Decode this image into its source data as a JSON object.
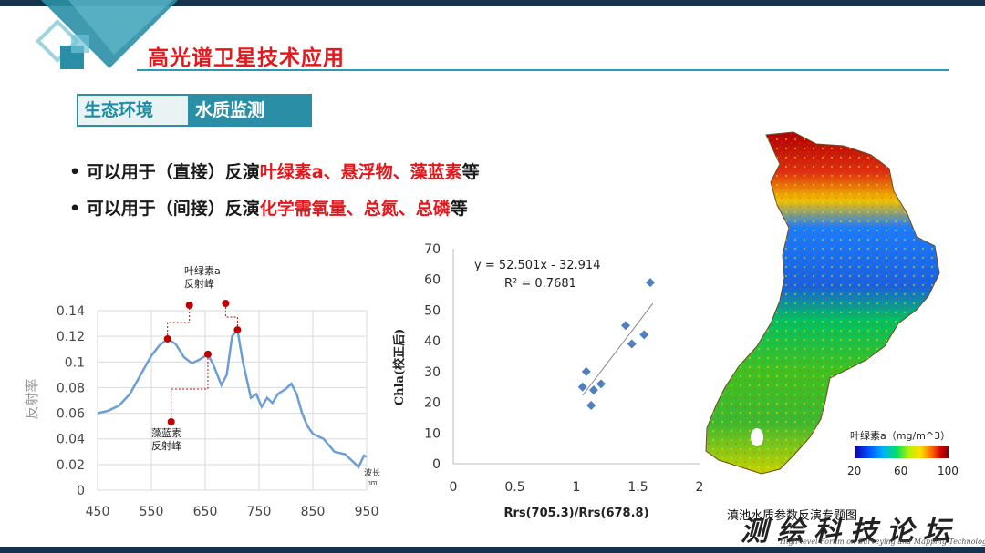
{
  "slide": {
    "title": "高光谱卫星技术应用",
    "tabs": [
      {
        "label": "生态环境"
      },
      {
        "label": "水质监测"
      }
    ],
    "bullets": [
      {
        "prefix": "• 可以用于（直接）反演",
        "highlight": "叶绿素a、悬浮物、藻蓝素",
        "suffix": "等"
      },
      {
        "prefix": "• 可以用于（间接）反演",
        "highlight": "化学需氧量、总氮、总磷",
        "suffix": "等"
      }
    ],
    "colors": {
      "accent": "#2a8fa6",
      "highlight": "#e4171d",
      "dark_bar": "#17324b"
    }
  },
  "chart_data": [
    {
      "type": "line",
      "ylabel": "反射率",
      "xlabel": "波长",
      "xunit": "nm",
      "xlim": [
        450,
        950
      ],
      "ylim": [
        0,
        0.14
      ],
      "x_ticks": [
        "450",
        "550",
        "650",
        "750",
        "850",
        "950"
      ],
      "y_ticks": [
        "0",
        "0.02",
        "0.04",
        "0.06",
        "0.08",
        "0.1",
        "0.12",
        "0.14"
      ],
      "grid": true,
      "series": [
        {
          "x": [
            450,
            470,
            490,
            510,
            530,
            550,
            565,
            580,
            595,
            610,
            625,
            640,
            655,
            665,
            680,
            690,
            700,
            710,
            720,
            735,
            745,
            755,
            765,
            775,
            785,
            800,
            810,
            820,
            830,
            840,
            850,
            870,
            890,
            910,
            925,
            935,
            945,
            950
          ],
          "y": [
            0.06,
            0.062,
            0.066,
            0.075,
            0.09,
            0.105,
            0.113,
            0.118,
            0.114,
            0.104,
            0.099,
            0.102,
            0.106,
            0.098,
            0.082,
            0.09,
            0.12,
            0.125,
            0.1,
            0.072,
            0.075,
            0.065,
            0.072,
            0.068,
            0.075,
            0.079,
            0.083,
            0.075,
            0.06,
            0.05,
            0.044,
            0.04,
            0.03,
            0.028,
            0.022,
            0.018,
            0.027,
            0.026
          ]
        }
      ],
      "annotations": [
        {
          "text": "叶绿素a",
          "text2": "反射峰"
        },
        {
          "text": "藻蓝素",
          "text2": "反射峰"
        }
      ],
      "markers": [
        {
          "x": 580,
          "y": 0.118
        },
        {
          "x": 655,
          "y": 0.106
        },
        {
          "x": 710,
          "y": 0.125
        }
      ]
    },
    {
      "type": "scatter",
      "xlabel": "Rrs(705.3)/Rrs(678.8)",
      "ylabel": "Chla(校正后)",
      "xlim": [
        0,
        2
      ],
      "ylim": [
        0,
        70
      ],
      "x_ticks": [
        "0",
        "0.5",
        "1",
        "1.5",
        "2"
      ],
      "y_ticks": [
        "0",
        "10",
        "20",
        "30",
        "40",
        "50",
        "60",
        "70"
      ],
      "equation": "y = 52.501x - 32.914",
      "r2": "R² = 0.7681",
      "trendline": {
        "slope": 52.501,
        "intercept": -32.914,
        "x_range": [
          1.05,
          1.62
        ]
      },
      "points": [
        {
          "x": 1.05,
          "y": 25
        },
        {
          "x": 1.08,
          "y": 30
        },
        {
          "x": 1.12,
          "y": 19
        },
        {
          "x": 1.14,
          "y": 24
        },
        {
          "x": 1.2,
          "y": 26
        },
        {
          "x": 1.4,
          "y": 45
        },
        {
          "x": 1.45,
          "y": 39
        },
        {
          "x": 1.55,
          "y": 42
        },
        {
          "x": 1.6,
          "y": 59
        }
      ]
    }
  ],
  "map": {
    "caption": "滇池水质参数反演专题图",
    "legend_title": "叶绿素a（mg/m^3）",
    "legend_ticks": [
      "20",
      "60",
      "100"
    ]
  },
  "watermark": {
    "text": "测绘科技论坛",
    "subtext": "High-level Forum on Surveying and Mapping Technology"
  }
}
